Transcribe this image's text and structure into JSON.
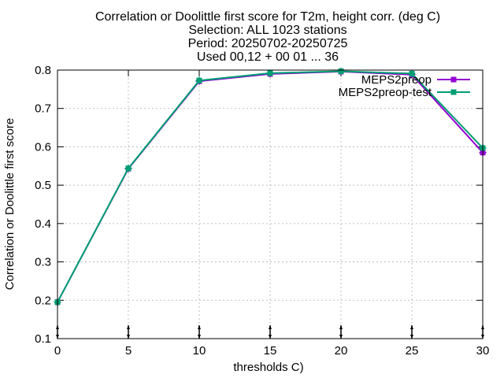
{
  "chart_data": {
    "type": "line",
    "title_lines": [
      "Correlation or Doolittle first score  for T2m, height corr. (deg C)",
      "Selection: ALL   1023 stations",
      "Period: 20250702-20250725",
      "Used 00,12 + 00 01 ... 36"
    ],
    "xlabel": "thresholds C)",
    "ylabel": "Correlation or Doolittle first score",
    "xlim": [
      0,
      30
    ],
    "ylim": [
      0.1,
      0.8
    ],
    "xticks": [
      0,
      5,
      10,
      15,
      20,
      25,
      30
    ],
    "yticks": [
      0.1,
      0.2,
      0.3,
      0.4,
      0.5,
      0.6,
      0.7,
      0.8
    ],
    "grid": true,
    "legend_position": "top-right",
    "x": [
      0,
      5,
      10,
      15,
      20,
      25,
      30
    ],
    "series": [
      {
        "name": "MEPS2preop",
        "color": "#9400d3",
        "values": [
          0.195,
          0.543,
          0.771,
          0.79,
          0.796,
          0.788,
          0.585
        ]
      },
      {
        "name": "MEPS2preop-test",
        "color": "#009e73",
        "values": [
          0.195,
          0.544,
          0.773,
          0.792,
          0.797,
          0.791,
          0.597
        ]
      }
    ]
  }
}
